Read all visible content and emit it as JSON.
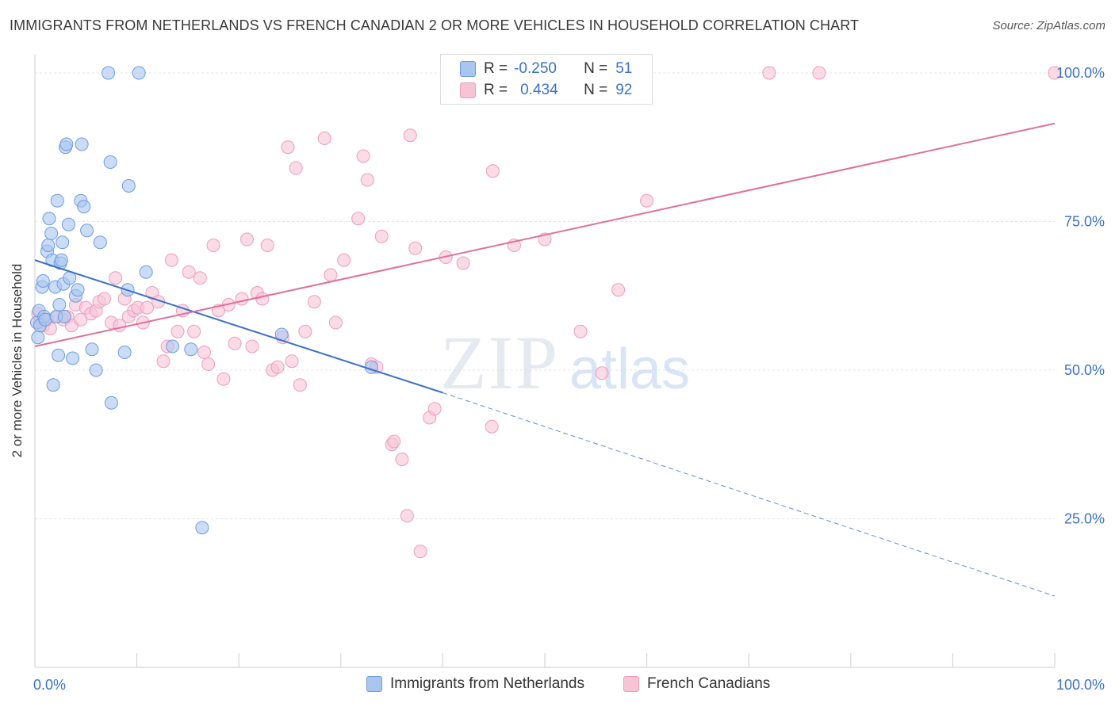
{
  "title": "IMMIGRANTS FROM NETHERLANDS VS FRENCH CANADIAN 2 OR MORE VEHICLES IN HOUSEHOLD CORRELATION CHART",
  "source": "Source: ZipAtlas.com",
  "watermark": {
    "zip": "ZIP",
    "atlas": "atlas"
  },
  "colors": {
    "blue": "#3b72c8",
    "blue_fill": "#a9c6f0",
    "blue_stroke": "#6f9be0",
    "pink": "#e0709a",
    "pink_fill": "#f7c3d5",
    "pink_stroke": "#ee9dbb",
    "grid": "#e6e6e6",
    "tick_text": "#3b72c8"
  },
  "legend": {
    "row1": {
      "r_label": "R =",
      "r_value": "-0.250",
      "n_label": "N =",
      "n_value": "51"
    },
    "row2": {
      "r_label": "R =",
      "r_value": "0.434",
      "n_label": "N =",
      "n_value": "92"
    }
  },
  "chart_data": {
    "type": "scatter",
    "title": "IMMIGRANTS FROM NETHERLANDS VS FRENCH CANADIAN 2 OR MORE VEHICLES IN HOUSEHOLD CORRELATION CHART",
    "xlabel": "",
    "ylabel": "2 or more Vehicles in Household",
    "xlim": [
      0,
      100
    ],
    "ylim": [
      0,
      104
    ],
    "x_tick_labels": [
      "0.0%",
      "100.0%"
    ],
    "y_ticks": [
      25,
      50,
      75,
      100
    ],
    "y_tick_labels": [
      "25.0%",
      "50.0%",
      "75.0%",
      "100.0%"
    ],
    "grid": true,
    "legend_position": "bottom",
    "series": [
      {
        "name": "Immigrants from Netherlands",
        "color": "#3b72c8",
        "trend": {
          "x0": 0,
          "y0": 68.5,
          "x1": 40,
          "y1": 46.2,
          "dashed_to_x": 100,
          "dashed_to_y": 12.0
        },
        "points": [
          [
            0.2,
            58
          ],
          [
            0.3,
            55.5
          ],
          [
            0.4,
            60
          ],
          [
            0.5,
            57.5
          ],
          [
            0.7,
            64
          ],
          [
            0.8,
            65
          ],
          [
            0.9,
            59
          ],
          [
            1.0,
            58.5
          ],
          [
            1.2,
            70
          ],
          [
            1.3,
            71
          ],
          [
            1.4,
            75.5
          ],
          [
            1.6,
            73
          ],
          [
            1.7,
            68.5
          ],
          [
            1.8,
            47.5
          ],
          [
            2.0,
            64
          ],
          [
            2.1,
            59
          ],
          [
            2.2,
            78.5
          ],
          [
            2.3,
            52.5
          ],
          [
            2.4,
            61
          ],
          [
            2.5,
            68
          ],
          [
            2.6,
            68.5
          ],
          [
            2.7,
            71.5
          ],
          [
            2.8,
            64.5
          ],
          [
            2.9,
            59
          ],
          [
            3.0,
            87.5
          ],
          [
            3.1,
            88
          ],
          [
            3.3,
            74.5
          ],
          [
            3.4,
            65.5
          ],
          [
            3.7,
            52
          ],
          [
            4.0,
            62.5
          ],
          [
            4.2,
            63.5
          ],
          [
            4.5,
            78.5
          ],
          [
            4.6,
            88
          ],
          [
            4.8,
            77.5
          ],
          [
            5.1,
            73.5
          ],
          [
            5.6,
            53.5
          ],
          [
            6.0,
            50
          ],
          [
            6.4,
            71.5
          ],
          [
            7.2,
            100
          ],
          [
            7.4,
            85
          ],
          [
            7.5,
            44.5
          ],
          [
            8.8,
            53
          ],
          [
            9.1,
            63.5
          ],
          [
            9.2,
            81
          ],
          [
            10.2,
            100
          ],
          [
            10.9,
            66.5
          ],
          [
            13.5,
            54
          ],
          [
            15.3,
            53.5
          ],
          [
            16.4,
            23.5
          ],
          [
            24.2,
            56
          ],
          [
            33.0,
            50.5
          ]
        ]
      },
      {
        "name": "French Canadians",
        "color": "#e0709a",
        "trend": {
          "x0": 0,
          "y0": 54,
          "x1": 100,
          "y1": 91.5
        },
        "points": [
          [
            0.3,
            59.5
          ],
          [
            0.5,
            58
          ],
          [
            0.8,
            57.5
          ],
          [
            1.2,
            58.5
          ],
          [
            1.5,
            57
          ],
          [
            2.2,
            59
          ],
          [
            2.8,
            58.5
          ],
          [
            3.2,
            59
          ],
          [
            3.6,
            57.5
          ],
          [
            4.0,
            61
          ],
          [
            4.5,
            58.5
          ],
          [
            5.0,
            60.5
          ],
          [
            5.5,
            59.5
          ],
          [
            6.0,
            60
          ],
          [
            6.3,
            61.5
          ],
          [
            6.8,
            62
          ],
          [
            7.5,
            58
          ],
          [
            7.9,
            65.5
          ],
          [
            8.3,
            57.5
          ],
          [
            8.8,
            62
          ],
          [
            9.2,
            59
          ],
          [
            9.7,
            60
          ],
          [
            10.1,
            60.5
          ],
          [
            10.6,
            58
          ],
          [
            11.0,
            60.5
          ],
          [
            11.5,
            63
          ],
          [
            12.1,
            61.5
          ],
          [
            12.6,
            51.5
          ],
          [
            13.0,
            54
          ],
          [
            13.4,
            68.5
          ],
          [
            14.0,
            56.5
          ],
          [
            14.5,
            60
          ],
          [
            15.1,
            66.5
          ],
          [
            15.6,
            56.5
          ],
          [
            16.2,
            65.5
          ],
          [
            16.6,
            53
          ],
          [
            17.0,
            51
          ],
          [
            17.5,
            71
          ],
          [
            18.0,
            60
          ],
          [
            18.5,
            48.5
          ],
          [
            19.0,
            61
          ],
          [
            19.6,
            54.5
          ],
          [
            20.3,
            62
          ],
          [
            20.8,
            72
          ],
          [
            21.3,
            54
          ],
          [
            21.8,
            63
          ],
          [
            22.3,
            62
          ],
          [
            22.8,
            71
          ],
          [
            23.3,
            50
          ],
          [
            23.8,
            50.5
          ],
          [
            24.3,
            55.5
          ],
          [
            24.8,
            87.5
          ],
          [
            25.2,
            51.5
          ],
          [
            25.6,
            84
          ],
          [
            26.0,
            47.5
          ],
          [
            26.5,
            56.5
          ],
          [
            27.4,
            61.5
          ],
          [
            28.4,
            89
          ],
          [
            29.0,
            66
          ],
          [
            29.5,
            58
          ],
          [
            30.3,
            68.5
          ],
          [
            31.7,
            75.5
          ],
          [
            32.2,
            86
          ],
          [
            32.6,
            82
          ],
          [
            33.0,
            51
          ],
          [
            33.5,
            50.5
          ],
          [
            34.0,
            72.5
          ],
          [
            35.0,
            37.5
          ],
          [
            35.2,
            38
          ],
          [
            36.0,
            35
          ],
          [
            36.5,
            25.5
          ],
          [
            36.8,
            89.5
          ],
          [
            37.3,
            70.5
          ],
          [
            37.8,
            19.5
          ],
          [
            38.7,
            42
          ],
          [
            39.2,
            43.5
          ],
          [
            40.3,
            69
          ],
          [
            42.0,
            68
          ],
          [
            44.8,
            40.5
          ],
          [
            44.9,
            83.5
          ],
          [
            47.0,
            71
          ],
          [
            47.5,
            100
          ],
          [
            50.0,
            72
          ],
          [
            51.0,
            100
          ],
          [
            53.2,
            100
          ],
          [
            53.5,
            56.5
          ],
          [
            55.6,
            49.5
          ],
          [
            57.2,
            63.5
          ],
          [
            60.0,
            78.5
          ],
          [
            72.0,
            100
          ],
          [
            76.9,
            100
          ],
          [
            100,
            100
          ]
        ]
      }
    ]
  }
}
